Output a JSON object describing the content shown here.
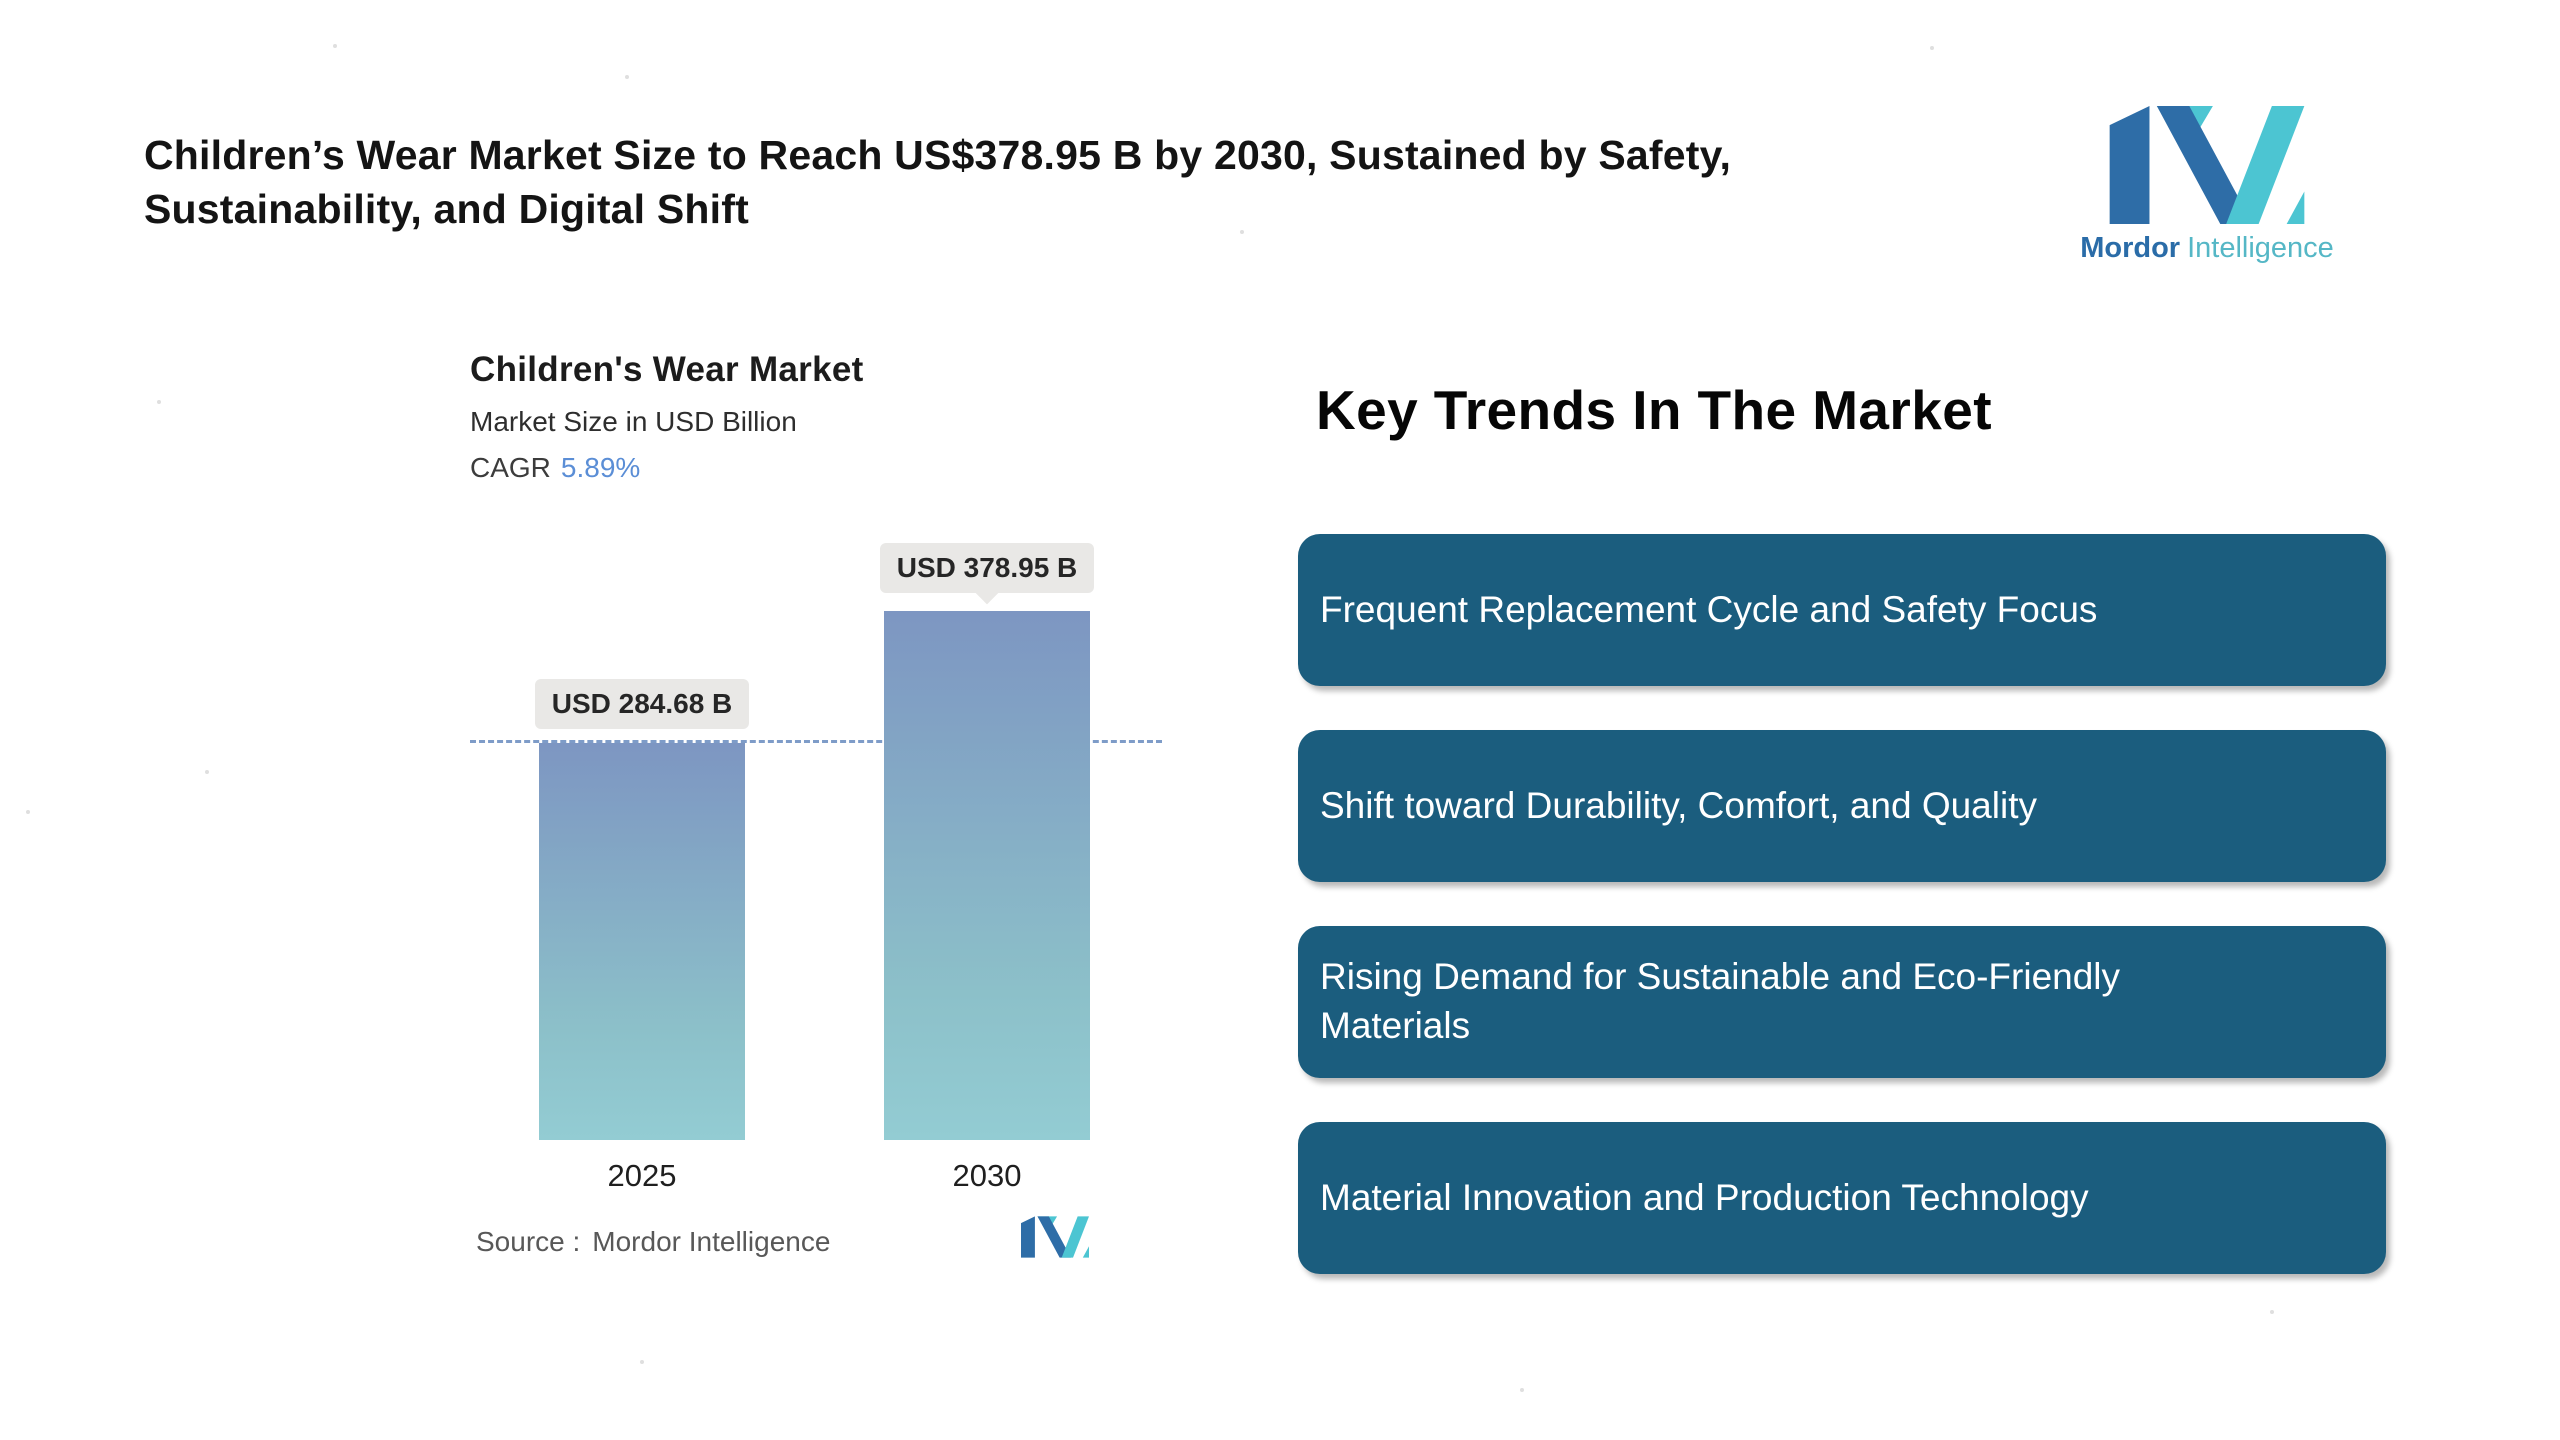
{
  "headline": "Children’s Wear Market Size to Reach US$378.95 B by 2030, Sustained by Safety, Sustainability, and Digital Shift",
  "brand": {
    "primary": "Mordor",
    "secondary": "Intelligence"
  },
  "chart": {
    "title": "Children's Wear Market",
    "subtitle": "Market Size in USD Billion",
    "cagr_label": "CAGR",
    "cagr_value": "5.89%",
    "source_label": "Source :",
    "source_value": "Mordor Intelligence"
  },
  "chart_data": {
    "type": "bar",
    "title": "Children's Wear Market",
    "subtitle": "Market Size in USD Billion",
    "unit": "USD Billion",
    "cagr_percent": 5.89,
    "categories": [
      "2025",
      "2030"
    ],
    "values": [
      284.68,
      378.95
    ],
    "value_labels": [
      "USD 284.68 B",
      "USD 378.95 B"
    ],
    "ylim": [
      0,
      430
    ],
    "grid": false,
    "legend": false,
    "reference_line": {
      "value": 284.68,
      "style": "dashed",
      "color": "#7e9cc8"
    },
    "bar_gradient_top": "#7d96c2",
    "bar_gradient_bottom": "#93ccd3"
  },
  "trends": {
    "heading": "Key Trends In The Market",
    "card_color": "#1b5d7e",
    "items": [
      {
        "label": "Frequent Replacement Cycle and Safety Focus"
      },
      {
        "label": "Shift toward Durability, Comfort, and Quality"
      },
      {
        "label": "Rising Demand for Sustainable and Eco-Friendly Materials"
      },
      {
        "label": "Material Innovation and Production Technology"
      }
    ]
  },
  "colors": {
    "brand_blue": "#2e6da7",
    "brand_teal": "#4cc5d2",
    "cagr_value_blue": "#5b8ed6",
    "card_background": "#1b5d7e",
    "value_chip_background": "#e9e8e6"
  }
}
